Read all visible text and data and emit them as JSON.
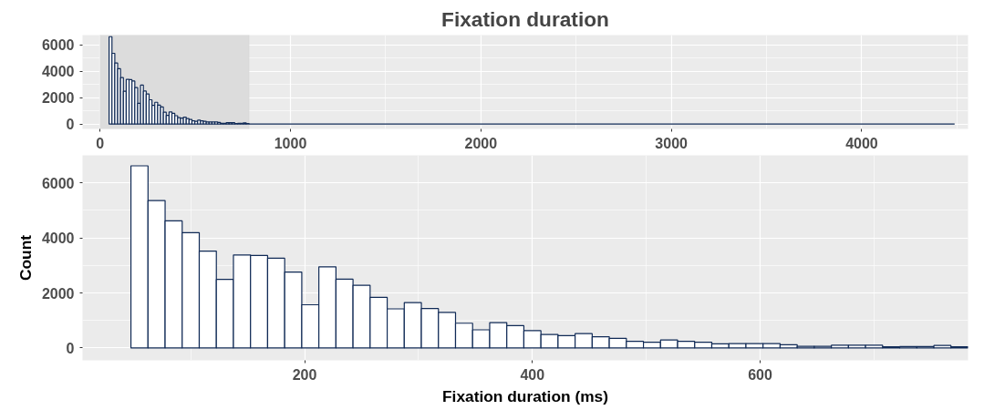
{
  "chart_data": [
    {
      "type": "histogram",
      "title": "Fixation duration",
      "color": "#102a56",
      "grid": true,
      "bins": [
        47.5,
        62.5,
        77.5,
        92.5,
        107.5,
        122.5,
        137.5,
        152.5,
        167.5,
        182.5,
        197.5,
        212.5,
        227.5,
        242.5,
        257.5,
        272.5,
        287.5,
        302.5,
        317.5,
        332.5,
        347.5,
        362.5,
        377.5,
        392.5,
        407.5,
        422.5,
        437.5,
        452.5,
        467.5,
        482.5,
        497.5,
        512.5,
        527.5,
        542.5,
        557.5,
        572.5,
        587.5,
        602.5,
        617.5,
        632.5,
        647.5,
        662.5,
        677.5,
        692.5,
        707.5,
        722.5,
        737.5,
        752.5,
        767.5,
        782.5,
        4487.5
      ],
      "values": [
        6620,
        5360,
        4620,
        4190,
        3520,
        2490,
        3380,
        3360,
        3260,
        2760,
        1570,
        2950,
        2500,
        2280,
        1840,
        1420,
        1650,
        1430,
        1290,
        900,
        660,
        920,
        810,
        630,
        490,
        450,
        520,
        410,
        350,
        240,
        210,
        290,
        240,
        210,
        150,
        160,
        160,
        160,
        120,
        60,
        60,
        100,
        100,
        100,
        40,
        50,
        50,
        90,
        40,
        0
      ],
      "xlim": [
        -92,
        4558
      ],
      "xticks": [
        0,
        1000,
        2000,
        3000,
        4000
      ],
      "ylim": [
        -370,
        6740
      ],
      "yticks": [
        0,
        2000,
        4000,
        6000
      ],
      "bands": [
        {
          "axis": "x",
          "from": 0,
          "to": 782.5,
          "color": "#dcdcdc"
        }
      ]
    },
    {
      "type": "histogram",
      "xlabel": "Fixation duration (ms)",
      "ylabel": "Count",
      "color": "#102a56",
      "grid": true,
      "bins": [
        47.5,
        62.5,
        77.5,
        92.5,
        107.5,
        122.5,
        137.5,
        152.5,
        167.5,
        182.5,
        197.5,
        212.5,
        227.5,
        242.5,
        257.5,
        272.5,
        287.5,
        302.5,
        317.5,
        332.5,
        347.5,
        362.5,
        377.5,
        392.5,
        407.5,
        422.5,
        437.5,
        452.5,
        467.5,
        482.5,
        497.5,
        512.5,
        527.5,
        542.5,
        557.5,
        572.5,
        587.5,
        602.5,
        617.5,
        632.5,
        647.5,
        662.5,
        677.5,
        692.5,
        707.5,
        722.5,
        737.5,
        752.5,
        767.5,
        782.5
      ],
      "values": [
        6620,
        5360,
        4620,
        4190,
        3520,
        2490,
        3380,
        3360,
        3260,
        2760,
        1570,
        2950,
        2500,
        2280,
        1840,
        1420,
        1650,
        1430,
        1290,
        900,
        660,
        920,
        810,
        630,
        490,
        450,
        520,
        410,
        350,
        240,
        210,
        290,
        240,
        210,
        150,
        160,
        160,
        160,
        120,
        60,
        60,
        100,
        100,
        100,
        40,
        50,
        50,
        90,
        40
      ],
      "xlim": [
        5,
        782.5
      ],
      "xticks": [
        200,
        400,
        600
      ],
      "ylim": [
        -450,
        7000
      ],
      "yticks": [
        0,
        2000,
        4000,
        6000
      ]
    }
  ]
}
